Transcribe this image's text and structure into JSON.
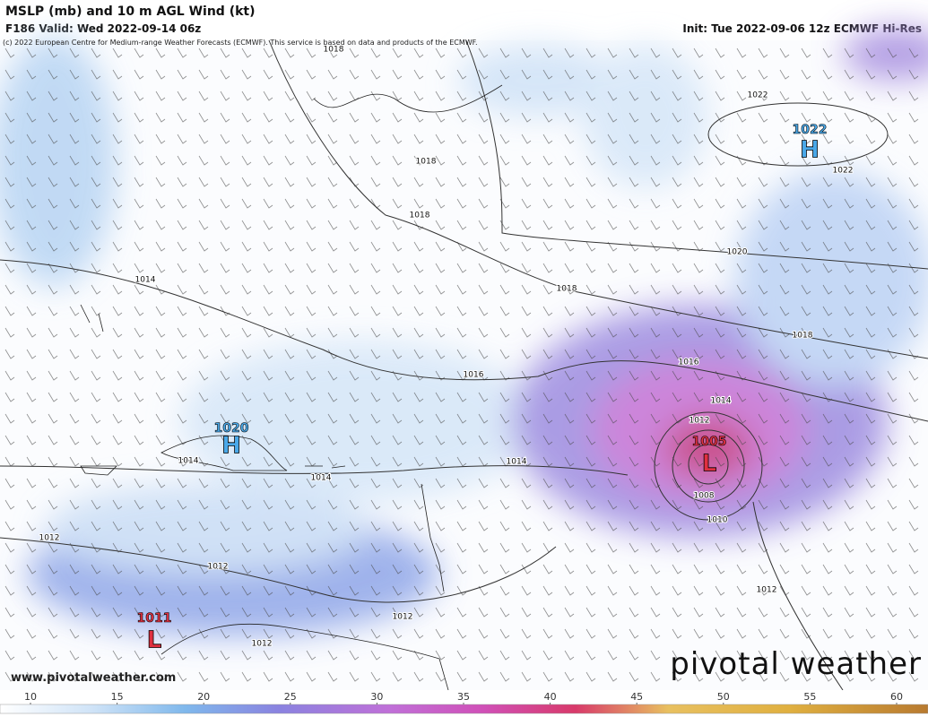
{
  "header": {
    "title": "MSLP (mb) and 10 m AGL Wind (kt)",
    "valid": "F186 Valid: Wed 2022-09-14 06z",
    "init": "Init: Tue 2022-09-06 12z ECMWF Hi-Res",
    "credit": "(c) 2022 European Centre for Medium-range Weather Forecasts (ECMWF). This service is based on data and products of the ECMWF."
  },
  "map": {
    "contour_labels": [
      1018,
      1018,
      1018,
      1022,
      1022,
      1020,
      1018,
      1018,
      1016,
      1016,
      1014,
      1014,
      1012,
      1010,
      1008,
      1014,
      1014,
      1014,
      1012,
      1012,
      1012,
      1012,
      1012
    ],
    "centers": [
      {
        "letter": "H",
        "value": 1022
      },
      {
        "letter": "H",
        "value": 1020
      },
      {
        "letter": "L",
        "value": 1005
      },
      {
        "letter": "L",
        "value": 1011
      }
    ]
  },
  "colorbar": {
    "ticks": [
      10,
      15,
      20,
      25,
      30,
      35,
      40,
      45,
      50,
      55,
      60
    ]
  },
  "footer": {
    "website": "www.pivotalweather.com",
    "brand": "pivotal weather"
  }
}
